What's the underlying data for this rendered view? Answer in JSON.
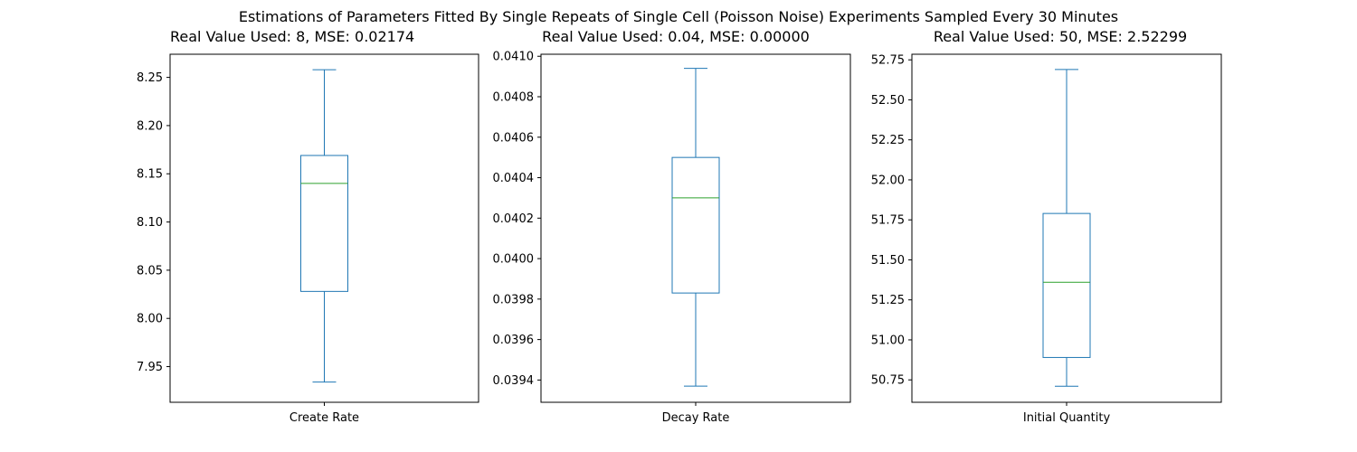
{
  "suptitle": "Estimations of Parameters Fitted By Single Repeats of Single Cell (Poisson Noise) Experiments Sampled Every 30 Minutes",
  "colors": {
    "box": "#1f77b4",
    "median": "#2ca02c",
    "axes": "#000000"
  },
  "chart_data": [
    {
      "type": "box",
      "title": "Real Value Used: 8, MSE: 0.02174",
      "category": "Create Rate",
      "ylim": [
        7.913,
        8.274
      ],
      "yticks": [
        7.95,
        8.0,
        8.05,
        8.1,
        8.15,
        8.2,
        8.25
      ],
      "ytick_labels": [
        "7.95",
        "8.00",
        "8.05",
        "8.10",
        "8.15",
        "8.20",
        "8.25"
      ],
      "whisker_low": 7.934,
      "q1": 8.028,
      "median": 8.14,
      "q3": 8.169,
      "whisker_high": 8.258
    },
    {
      "type": "box",
      "title": "Real Value Used: 0.04, MSE: 0.00000",
      "category": "Decay Rate",
      "ylim": [
        0.03929,
        0.04101
      ],
      "yticks": [
        0.0394,
        0.0396,
        0.0398,
        0.04,
        0.0402,
        0.0404,
        0.0406,
        0.0408,
        0.041
      ],
      "ytick_labels": [
        "0.0394",
        "0.0396",
        "0.0398",
        "0.0400",
        "0.0402",
        "0.0404",
        "0.0406",
        "0.0408",
        "0.0410"
      ],
      "whisker_low": 0.03937,
      "q1": 0.03983,
      "median": 0.0403,
      "q3": 0.0405,
      "whisker_high": 0.04094
    },
    {
      "type": "box",
      "title": "Real Value Used: 50, MSE: 2.52299",
      "category": "Initial Quantity",
      "ylim": [
        50.61,
        52.785
      ],
      "yticks": [
        50.75,
        51.0,
        51.25,
        51.5,
        51.75,
        52.0,
        52.25,
        52.5,
        52.75
      ],
      "ytick_labels": [
        "50.75",
        "51.00",
        "51.25",
        "51.50",
        "51.75",
        "52.00",
        "52.25",
        "52.50",
        "52.75"
      ],
      "whisker_low": 50.71,
      "q1": 50.89,
      "median": 51.36,
      "q3": 51.79,
      "whisker_high": 52.69
    }
  ]
}
